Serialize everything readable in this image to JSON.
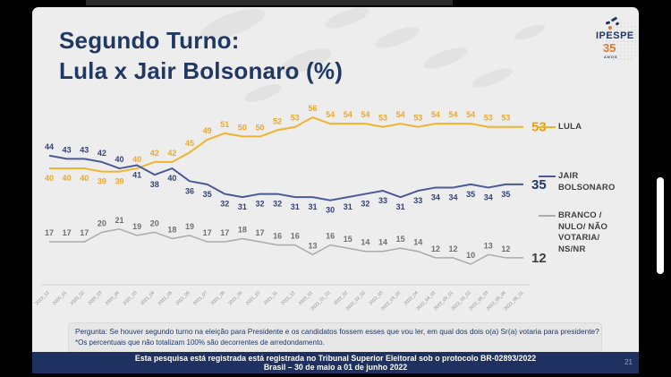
{
  "slide": {
    "title_line1": "Segundo Turno:",
    "title_line2": "Lula x Jair Bolsonaro (%)",
    "logo": {
      "name": "IPESPE",
      "years": "35",
      "anos": "anos"
    },
    "question": "Pergunta:  Se houver segundo turno na eleição para Presidente e os candidatos fossem esses que vou ler, em qual dos dois o(a) Sr(a) votaria para presidente?",
    "note": "*Os percentuais que não totalizam 100% são decorrentes de arredondamento.",
    "footer_line1": "Esta pesquisa está registrada está registrada no Tribunal Superior Eleitoral sob o protocolo BR-02893/2022",
    "footer_line2": "Brasil – 30 de maio a 01 de junho 2022",
    "page_number": "21"
  },
  "colors": {
    "title_navy": "#203864",
    "slide_bg": "#ededed",
    "footer_bar": "#1f3160",
    "lula_yellow": "#efb42f",
    "bolsonaro_blue": "#4a5a96",
    "branco_gray": "#ababab"
  },
  "legend": {
    "items": [
      {
        "color": "#efb42f",
        "lines": [
          "LULA"
        ]
      },
      {
        "color": "#4a5a96",
        "lines": [
          "JAIR",
          "BOLSONARO"
        ]
      },
      {
        "color": "#ababab",
        "lines": [
          "BRANCO /",
          "NULO/ NÃO",
          "VOTARIA/",
          "NS/NR"
        ]
      }
    ]
  },
  "chart_data": {
    "type": "line",
    "title": "Segundo Turno: Lula x Jair Bolsonaro (%)",
    "xlabel": "",
    "ylabel": "",
    "ylim": [
      0,
      60
    ],
    "grid": false,
    "legend_position": "right",
    "categories": [
      "2019_12",
      "2020_01",
      "2020_02",
      "2020_03",
      "2020_04",
      "2021_03",
      "2021_04",
      "2021_05",
      "2021_06",
      "2021_07",
      "2021_08",
      "2021_09",
      "2021_10",
      "2021_11",
      "2021_12",
      "2022_01",
      "2022_01_02",
      "2022_02",
      "2022_02_02",
      "2022_03",
      "2022_03_02",
      "2022_04",
      "2022_04_02",
      "2022_05_01",
      "2022_05_02",
      "2022_05_03",
      "2022_05_04",
      "2022_06_01"
    ],
    "series": [
      {
        "name": "LULA",
        "color": "#efb42f",
        "label_color": "#eaa92a",
        "end_label_color": "#e8a300",
        "values": [
          40,
          40,
          40,
          39,
          39,
          40,
          42,
          42,
          45,
          49,
          51,
          50,
          50,
          52,
          53,
          56,
          54,
          54,
          54,
          53,
          54,
          53,
          54,
          54,
          54,
          53,
          53,
          53
        ]
      },
      {
        "name": "JAIR BOLSONARO",
        "color": "#4a5a96",
        "label_color": "#33437b",
        "end_label_color": "#203864",
        "values": [
          44,
          43,
          43,
          42,
          40,
          41,
          38,
          40,
          36,
          35,
          32,
          31,
          32,
          32,
          31,
          31,
          30,
          31,
          32,
          33,
          31,
          33,
          34,
          34,
          35,
          34,
          35,
          35
        ]
      },
      {
        "name": "BRANCO / NULO/ NÃO VOTARIA/ NS/NR",
        "color": "#ababab",
        "label_color": "#6f6f6f",
        "end_label_color": "#3f3f3f",
        "values": [
          17,
          17,
          17,
          20,
          21,
          19,
          20,
          18,
          19,
          17,
          17,
          18,
          17,
          16,
          16,
          13,
          16,
          15,
          14,
          14,
          15,
          14,
          12,
          12,
          10,
          13,
          12,
          12
        ]
      }
    ]
  }
}
